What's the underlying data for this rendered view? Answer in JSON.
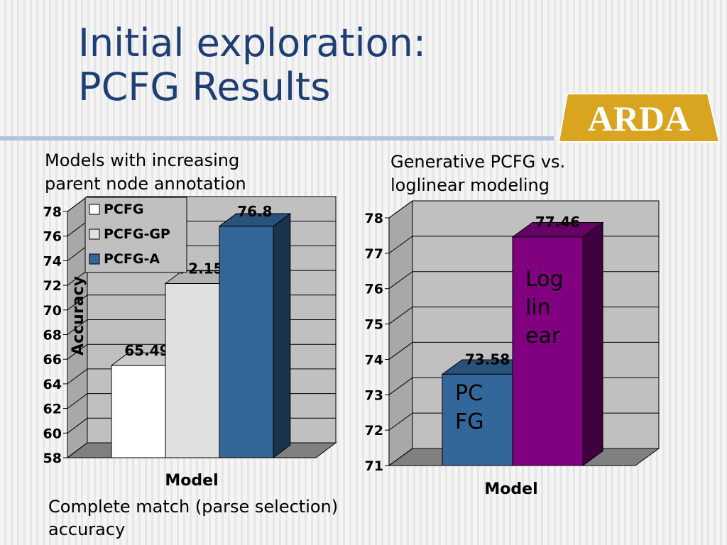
{
  "title": [
    "Initial exploration:",
    "PCFG Results"
  ],
  "logo": "ARDA",
  "caption": "Complete match (parse selection) accuracy",
  "chart_data": [
    {
      "type": "bar3d",
      "title": "Models with increasing parent  node annotation",
      "xlabel": "Model",
      "ylabel": "Accuracy",
      "categories": [
        null
      ],
      "series": [
        {
          "name": "PCFG",
          "color": "#ffffff",
          "values": [
            65.49
          ]
        },
        {
          "name": "PCFG-GP",
          "color": "#e0e0e0",
          "values": [
            72.15
          ]
        },
        {
          "name": "PCFG-A",
          "color": "#336699",
          "values": [
            76.8
          ]
        }
      ],
      "ylim": [
        58,
        78
      ],
      "yticks": [
        58,
        60,
        62,
        64,
        66,
        68,
        70,
        72,
        74,
        76,
        78
      ],
      "grid": true,
      "legend": "upper-left"
    },
    {
      "type": "bar3d",
      "title": "Generative PCFG vs. loglinear modeling",
      "xlabel": "Model",
      "categories": [
        null
      ],
      "series": [
        {
          "name": "PC FG",
          "color": "#336699",
          "values": [
            73.58
          ]
        },
        {
          "name": "Log lin ear",
          "color": "#800080",
          "values": [
            77.46
          ]
        }
      ],
      "ylim": [
        71,
        78
      ],
      "yticks": [
        71,
        72,
        73,
        74,
        75,
        76,
        77,
        78
      ],
      "grid": true,
      "legend": false
    }
  ]
}
